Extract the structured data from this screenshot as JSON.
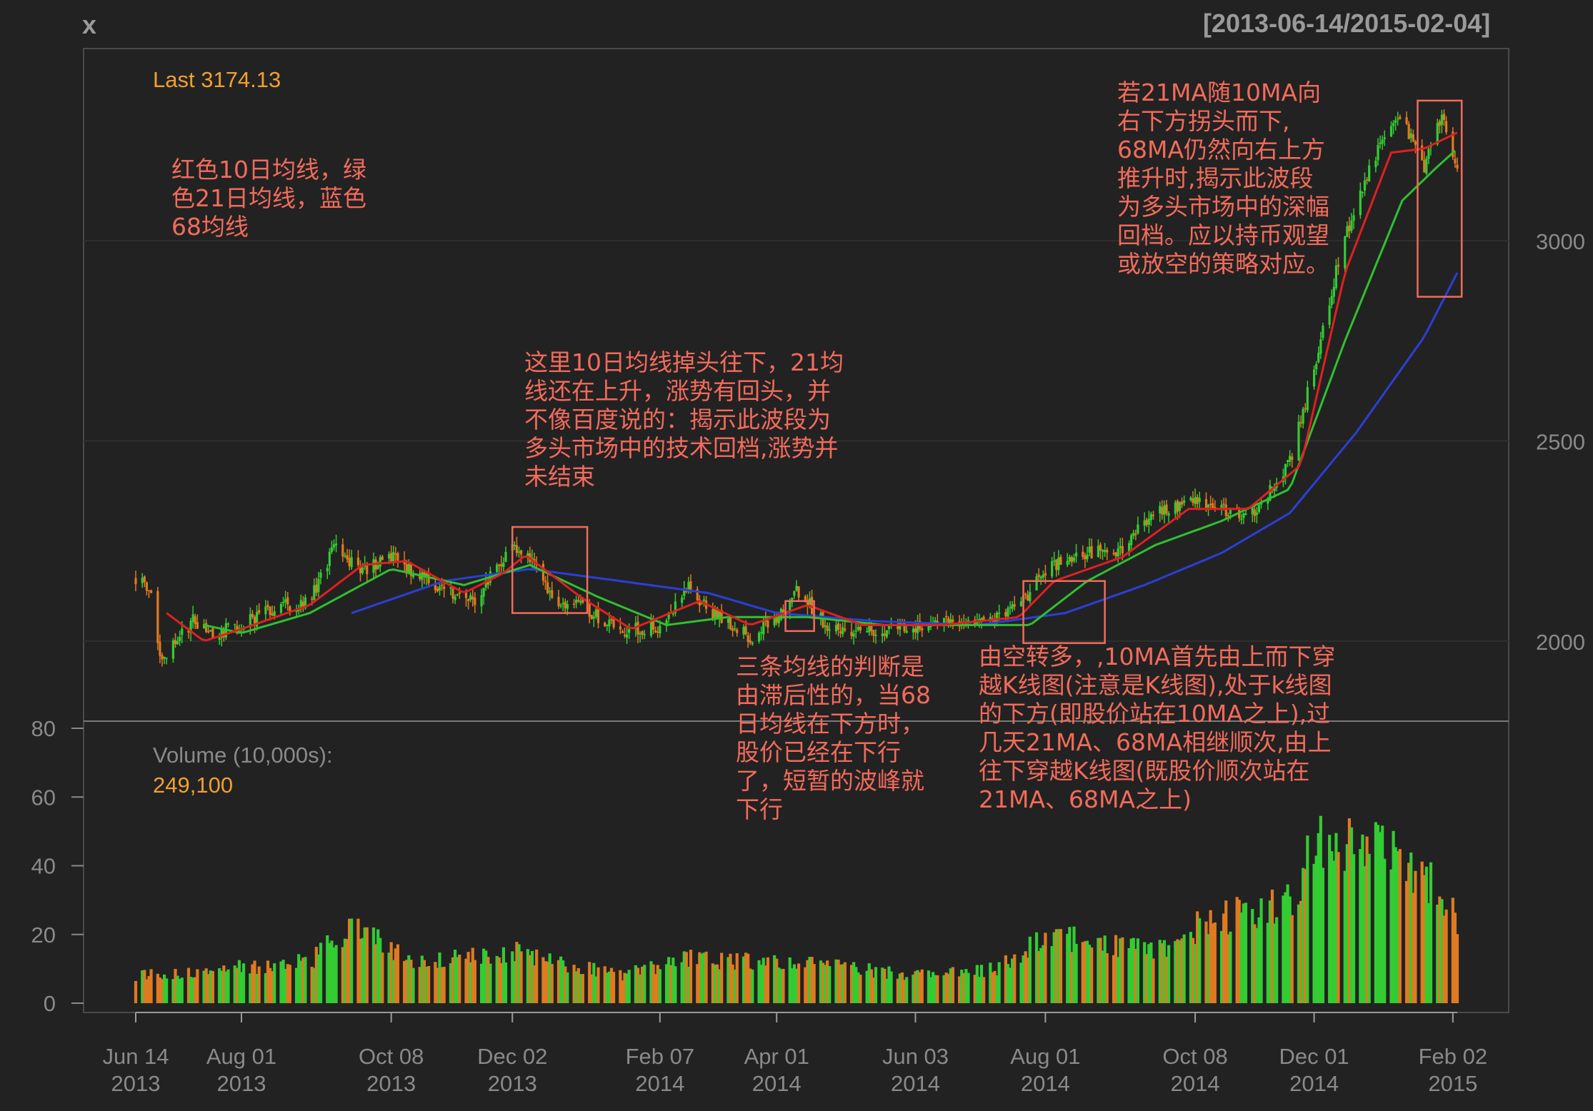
{
  "header": {
    "symbol": "x",
    "date_range": "[2013-06-14/2015-02-04]"
  },
  "colors": {
    "background": "#222222",
    "up": "#33cc33",
    "down": "#e07a20",
    "ma10": "#e02020",
    "ma21": "#30c030",
    "ma68": "#2b3fd6",
    "annotation": "#f26b5b",
    "label": "#f0a030"
  },
  "price_panel": {
    "last_label": "Last 3174.13",
    "ylim": [
      1800,
      3480
    ],
    "y_ticks": [
      "2000",
      "2500",
      "3000"
    ]
  },
  "volume_panel": {
    "title": "Volume (10,000s):",
    "last_value": "249,100",
    "ylim": [
      0,
      80
    ],
    "y_ticks": [
      "0",
      "20",
      "40",
      "60",
      "80"
    ]
  },
  "x_axis": {
    "ticks": [
      {
        "line1": "Jun 14",
        "line2": "2013"
      },
      {
        "line1": "Aug 01",
        "line2": "2013"
      },
      {
        "line1": "Oct 08",
        "line2": "2013"
      },
      {
        "line1": "Dec 02",
        "line2": "2013"
      },
      {
        "line1": "Feb 07",
        "line2": "2014"
      },
      {
        "line1": "Apr 01",
        "line2": "2014"
      },
      {
        "line1": "Jun 03",
        "line2": "2014"
      },
      {
        "line1": "Aug 01",
        "line2": "2014"
      },
      {
        "line1": "Oct 08",
        "line2": "2014"
      },
      {
        "line1": "Dec 01",
        "line2": "2014"
      },
      {
        "line1": "Feb 02",
        "line2": "2015"
      }
    ]
  },
  "annotations": {
    "legend_note": "红色10日均线，绿\n色21日均线，蓝色\n68均线",
    "dec_note": "这里10日均线掉头往下，21均\n线还在上升，涨势有回头，并\n不像百度说的：揭示此波段为\n多头市场中的技术回档,涨势并\n未结束",
    "apr_note": "三条均线的判断是\n由滞后性的，当68\n日均线在下方时，\n股价已经在下行\n了，短暂的波峰就\n下行",
    "aug_note": "由空转多，,10MA首先由上而下穿\n越K线图(注意是K线图),处于k线图\n的下方(即股价站在10MA之上),过\n几天21MA、68MA相继顺次,由上\n往下穿越K线图(既股价顺次站在\n21MA、68MA之上)",
    "jan_note": "若21MA随10MA向\n右下方拐头而下,\n68MA仍然向右上方\n推升时,揭示此波段\n为多头市场中的深幅\n回档。应以持币观望\n或放空的策略对应。"
  },
  "chart_data": {
    "type": "candlestick",
    "title": "x",
    "subtitle": "[2013-06-14/2015-02-04]",
    "x_range": [
      "2013-06-14",
      "2015-02-04"
    ],
    "price_ylim": [
      1800,
      3480
    ],
    "volume_ylim": [
      0,
      80
    ],
    "volume_unit": "10,000s",
    "last_close": 3174.13,
    "last_volume": 249100,
    "close_path": [
      {
        "date": "2013-06-14",
        "close": 2160
      },
      {
        "date": "2013-06-20",
        "close": 2140
      },
      {
        "date": "2013-06-25",
        "close": 1960
      },
      {
        "date": "2013-07-01",
        "close": 1990
      },
      {
        "date": "2013-07-10",
        "close": 2050
      },
      {
        "date": "2013-07-20",
        "close": 2020
      },
      {
        "date": "2013-08-01",
        "close": 2040
      },
      {
        "date": "2013-08-15",
        "close": 2080
      },
      {
        "date": "2013-09-01",
        "close": 2100
      },
      {
        "date": "2013-09-12",
        "close": 2230
      },
      {
        "date": "2013-09-25",
        "close": 2180
      },
      {
        "date": "2013-10-08",
        "close": 2210
      },
      {
        "date": "2013-10-25",
        "close": 2150
      },
      {
        "date": "2013-11-05",
        "close": 2120
      },
      {
        "date": "2013-11-15",
        "close": 2100
      },
      {
        "date": "2013-11-25",
        "close": 2190
      },
      {
        "date": "2013-12-02",
        "close": 2230
      },
      {
        "date": "2013-12-10",
        "close": 2200
      },
      {
        "date": "2013-12-20",
        "close": 2110
      },
      {
        "date": "2014-01-05",
        "close": 2080
      },
      {
        "date": "2014-01-20",
        "close": 2020
      },
      {
        "date": "2014-02-07",
        "close": 2040
      },
      {
        "date": "2014-02-20",
        "close": 2130
      },
      {
        "date": "2014-03-05",
        "close": 2060
      },
      {
        "date": "2014-03-20",
        "close": 2010
      },
      {
        "date": "2014-04-01",
        "close": 2060
      },
      {
        "date": "2014-04-10",
        "close": 2130
      },
      {
        "date": "2014-04-25",
        "close": 2030
      },
      {
        "date": "2014-05-10",
        "close": 2030
      },
      {
        "date": "2014-06-03",
        "close": 2030
      },
      {
        "date": "2014-06-20",
        "close": 2045
      },
      {
        "date": "2014-07-10",
        "close": 2060
      },
      {
        "date": "2014-07-20",
        "close": 2080
      },
      {
        "date": "2014-08-01",
        "close": 2180
      },
      {
        "date": "2014-08-20",
        "close": 2220
      },
      {
        "date": "2014-09-05",
        "close": 2230
      },
      {
        "date": "2014-09-20",
        "close": 2330
      },
      {
        "date": "2014-10-08",
        "close": 2350
      },
      {
        "date": "2014-10-25",
        "close": 2320
      },
      {
        "date": "2014-11-05",
        "close": 2330
      },
      {
        "date": "2014-11-20",
        "close": 2450
      },
      {
        "date": "2014-12-01",
        "close": 2680
      },
      {
        "date": "2014-12-10",
        "close": 2900
      },
      {
        "date": "2014-12-20",
        "close": 3100
      },
      {
        "date": "2015-01-01",
        "close": 3250
      },
      {
        "date": "2015-01-10",
        "close": 3300
      },
      {
        "date": "2015-01-20",
        "close": 3180
      },
      {
        "date": "2015-01-28",
        "close": 3320
      },
      {
        "date": "2015-02-04",
        "close": 3174
      }
    ],
    "ma10_path": [
      {
        "date": "2013-06-28",
        "value": 2070
      },
      {
        "date": "2013-07-15",
        "value": 2000
      },
      {
        "date": "2013-08-01",
        "value": 2030
      },
      {
        "date": "2013-09-01",
        "value": 2090
      },
      {
        "date": "2013-09-25",
        "value": 2190
      },
      {
        "date": "2013-10-15",
        "value": 2200
      },
      {
        "date": "2013-11-10",
        "value": 2120
      },
      {
        "date": "2013-11-28",
        "value": 2170
      },
      {
        "date": "2013-12-08",
        "value": 2215
      },
      {
        "date": "2014-01-02",
        "value": 2110
      },
      {
        "date": "2014-01-25",
        "value": 2030
      },
      {
        "date": "2014-02-25",
        "value": 2100
      },
      {
        "date": "2014-03-20",
        "value": 2040
      },
      {
        "date": "2014-04-15",
        "value": 2090
      },
      {
        "date": "2014-05-10",
        "value": 2040
      },
      {
        "date": "2014-06-15",
        "value": 2040
      },
      {
        "date": "2014-07-20",
        "value": 2060
      },
      {
        "date": "2014-08-05",
        "value": 2150
      },
      {
        "date": "2014-09-05",
        "value": 2210
      },
      {
        "date": "2014-10-05",
        "value": 2330
      },
      {
        "date": "2014-11-01",
        "value": 2330
      },
      {
        "date": "2014-11-25",
        "value": 2440
      },
      {
        "date": "2014-12-15",
        "value": 2920
      },
      {
        "date": "2015-01-05",
        "value": 3220
      },
      {
        "date": "2015-01-20",
        "value": 3230
      },
      {
        "date": "2015-02-04",
        "value": 3270
      }
    ],
    "ma21_path": [
      {
        "date": "2013-07-15",
        "value": 2040
      },
      {
        "date": "2013-08-01",
        "value": 2020
      },
      {
        "date": "2013-09-01",
        "value": 2070
      },
      {
        "date": "2013-10-08",
        "value": 2180
      },
      {
        "date": "2013-11-10",
        "value": 2140
      },
      {
        "date": "2013-12-10",
        "value": 2190
      },
      {
        "date": "2014-01-10",
        "value": 2110
      },
      {
        "date": "2014-02-10",
        "value": 2040
      },
      {
        "date": "2014-03-10",
        "value": 2060
      },
      {
        "date": "2014-04-15",
        "value": 2060
      },
      {
        "date": "2014-05-20",
        "value": 2040
      },
      {
        "date": "2014-07-01",
        "value": 2040
      },
      {
        "date": "2014-07-25",
        "value": 2040
      },
      {
        "date": "2014-08-20",
        "value": 2150
      },
      {
        "date": "2014-09-20",
        "value": 2240
      },
      {
        "date": "2014-10-20",
        "value": 2300
      },
      {
        "date": "2014-11-20",
        "value": 2380
      },
      {
        "date": "2014-12-15",
        "value": 2750
      },
      {
        "date": "2015-01-10",
        "value": 3100
      },
      {
        "date": "2015-01-25",
        "value": 3180
      },
      {
        "date": "2015-02-04",
        "value": 3230
      }
    ],
    "ma68_path": [
      {
        "date": "2013-09-20",
        "value": 2070
      },
      {
        "date": "2013-11-01",
        "value": 2150
      },
      {
        "date": "2013-12-10",
        "value": 2180
      },
      {
        "date": "2014-01-20",
        "value": 2150
      },
      {
        "date": "2014-03-01",
        "value": 2120
      },
      {
        "date": "2014-04-01",
        "value": 2070
      },
      {
        "date": "2014-05-15",
        "value": 2050
      },
      {
        "date": "2014-07-01",
        "value": 2040
      },
      {
        "date": "2014-08-10",
        "value": 2070
      },
      {
        "date": "2014-09-15",
        "value": 2140
      },
      {
        "date": "2014-10-20",
        "value": 2220
      },
      {
        "date": "2014-11-20",
        "value": 2320
      },
      {
        "date": "2014-12-20",
        "value": 2520
      },
      {
        "date": "2015-01-20",
        "value": 2760
      },
      {
        "date": "2015-02-04",
        "value": 2920
      }
    ],
    "volume_path": [
      {
        "date": "2013-06-14",
        "value": 8
      },
      {
        "date": "2013-09-01",
        "value": 12
      },
      {
        "date": "2013-09-20",
        "value": 22
      },
      {
        "date": "2013-10-20",
        "value": 12
      },
      {
        "date": "2013-12-02",
        "value": 15
      },
      {
        "date": "2014-01-20",
        "value": 8
      },
      {
        "date": "2014-02-20",
        "value": 13
      },
      {
        "date": "2014-03-20",
        "value": 12
      },
      {
        "date": "2014-04-10",
        "value": 12
      },
      {
        "date": "2014-06-03",
        "value": 8
      },
      {
        "date": "2014-07-10",
        "value": 10
      },
      {
        "date": "2014-08-01",
        "value": 20
      },
      {
        "date": "2014-09-20",
        "value": 15
      },
      {
        "date": "2014-10-08",
        "value": 22
      },
      {
        "date": "2014-11-20",
        "value": 30
      },
      {
        "date": "2014-12-05",
        "value": 50
      },
      {
        "date": "2014-12-20",
        "value": 48
      },
      {
        "date": "2015-01-10",
        "value": 42
      },
      {
        "date": "2015-01-25",
        "value": 35
      },
      {
        "date": "2015-02-04",
        "value": 25
      }
    ],
    "highlight_boxes": [
      {
        "from": "2013-12-02",
        "to": "2014-01-05",
        "price_low": 2070,
        "price_high": 2285
      },
      {
        "from": "2014-04-05",
        "to": "2014-04-18",
        "price_low": 2025,
        "price_high": 2100
      },
      {
        "from": "2014-07-22",
        "to": "2014-08-28",
        "price_low": 1995,
        "price_high": 2150
      },
      {
        "from": "2015-01-17",
        "to": "2015-02-06",
        "price_low": 2860,
        "price_high": 3350
      }
    ]
  }
}
